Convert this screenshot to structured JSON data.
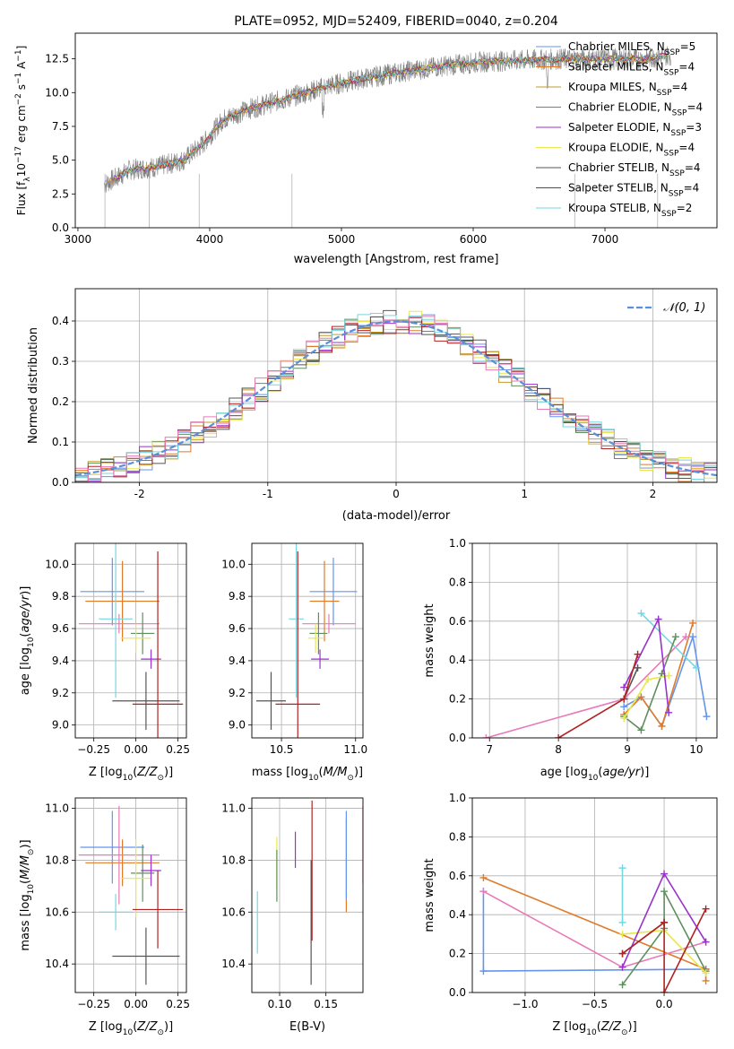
{
  "colors": {
    "Chabrier MILES": "#6495ed",
    "Salpeter MILES": "#e07b2a",
    "Kroupa MILES": "#c49a2e",
    "Chabrier ELODIE": "#5f8f5f",
    "Salpeter ELODIE": "#9932cc",
    "Kroupa ELODIE": "#e8e84a",
    "Chabrier STELIB": "#555555",
    "Salpeter STELIB": "#b22222",
    "Kroupa STELIB": "#76d7e0",
    "extra_pink": "#e87ab8",
    "gaussian": "#5b8fd6",
    "grid": "#b0b0b0"
  },
  "chart_data": [
    {
      "id": "spectrum",
      "type": "line",
      "title": "PLATE=0952, MJD=52409, FIBERID=0040, z=0.204",
      "xlabel": "wavelength [Angstrom, rest frame]",
      "ylabel": "Flux [f_λ 10^-17 erg cm^-2 s^-1 A^-1]",
      "xlim": [
        2980,
        7850
      ],
      "ylim": [
        0,
        14.4
      ],
      "xticks": [
        3000,
        4000,
        5000,
        6000,
        7000
      ],
      "yticks": [
        0.0,
        2.5,
        5.0,
        7.5,
        10.0,
        12.5
      ],
      "grid": false,
      "legend_position": "right",
      "series": [
        {
          "name": "Chabrier MILES",
          "nssp": "5"
        },
        {
          "name": "Salpeter MILES",
          "nssp": "4"
        },
        {
          "name": "Kroupa MILES",
          "nssp": "4"
        },
        {
          "name": "Chabrier ELODIE",
          "nssp": "4"
        },
        {
          "name": "Salpeter ELODIE",
          "nssp": "3"
        },
        {
          "name": "Kroupa ELODIE",
          "nssp": "4"
        },
        {
          "name": "Chabrier STELIB",
          "nssp": "4"
        },
        {
          "name": "Salpeter STELIB",
          "nssp": "4"
        },
        {
          "name": "Kroupa STELIB",
          "nssp": "2"
        }
      ],
      "continuum": {
        "x": [
          3200,
          3400,
          3600,
          3800,
          3950,
          4100,
          4300,
          4600,
          4900,
          5200,
          5500,
          5800,
          6100,
          6400,
          6700,
          7000,
          7300,
          7500
        ],
        "y": [
          3.2,
          4.3,
          4.5,
          5.0,
          6.2,
          8.0,
          8.8,
          9.6,
          10.5,
          11.1,
          11.6,
          12.0,
          12.3,
          12.4,
          12.5,
          12.5,
          12.5,
          12.8
        ]
      }
    },
    {
      "id": "residuals",
      "type": "histogram",
      "xlabel": "(data-model)/error",
      "ylabel": "Normed distribution",
      "xlim": [
        -2.5,
        2.5
      ],
      "ylim": [
        0,
        0.48
      ],
      "xticks": [
        -2,
        -1,
        0,
        1,
        2
      ],
      "yticks": [
        0.0,
        0.1,
        0.2,
        0.3,
        0.4
      ],
      "grid": true,
      "legend": "𝒩(0, 1)",
      "legend_position": "top-right",
      "bin_width": 0.1,
      "bins_from": -2.5
    },
    {
      "id": "age-vs-Z",
      "type": "scatter",
      "xlabel": "Z [log10(Z/Z⊙)]",
      "ylabel": "age  [log10(age/yr)]",
      "xlim": [
        -0.36,
        0.3
      ],
      "ylim": [
        8.92,
        10.13
      ],
      "xticks": [
        -0.25,
        0.0,
        0.25
      ],
      "xticklabels": [
        "−0.25",
        "0.00",
        "0.25"
      ],
      "yticks": [
        9.0,
        9.2,
        9.4,
        9.6,
        9.8,
        10.0
      ],
      "grid": true,
      "points": [
        {
          "model": "Chabrier MILES",
          "x": -0.14,
          "xerr": 0.19,
          "y": 9.83,
          "yerr": 0.21
        },
        {
          "model": "Salpeter MILES",
          "x": -0.08,
          "xerr": 0.22,
          "y": 9.77,
          "yerr": 0.25
        },
        {
          "model": "extra_pink",
          "x": -0.1,
          "xerr": 0.24,
          "y": 9.63,
          "yerr": 0.06
        },
        {
          "model": "Kroupa STELIB",
          "x": -0.12,
          "xerr": 0.1,
          "y": 9.66,
          "yerr": 0.49
        },
        {
          "model": "Chabrier ELODIE",
          "x": 0.04,
          "xerr": 0.07,
          "y": 9.57,
          "yerr": 0.13
        },
        {
          "model": "Kroupa ELODIE",
          "x": 0.0,
          "xerr": 0.09,
          "y": 9.54,
          "yerr": 0.09
        },
        {
          "model": "Salpeter ELODIE",
          "x": 0.09,
          "xerr": 0.06,
          "y": 9.41,
          "yerr": 0.06
        },
        {
          "model": "Chabrier STELIB",
          "x": 0.06,
          "xerr": 0.2,
          "y": 9.15,
          "yerr": 0.18
        },
        {
          "model": "Salpeter STELIB",
          "x": 0.13,
          "xerr": 0.15,
          "y": 9.13,
          "yerr": 0.95
        }
      ]
    },
    {
      "id": "age-vs-mass",
      "type": "scatter",
      "xlabel": "mass [log10(M/M⊙)]",
      "ylabel": "",
      "xlim": [
        10.3,
        11.05
      ],
      "ylim": [
        8.92,
        10.13
      ],
      "xticks": [
        10.5,
        11.0
      ],
      "xticklabels": [
        "10.5",
        "11.0"
      ],
      "yticks": [
        9.0,
        9.2,
        9.4,
        9.6,
        9.8,
        10.0
      ],
      "grid": true,
      "points": [
        {
          "model": "Chabrier MILES",
          "x": 10.85,
          "xerr": 0.16,
          "y": 9.83,
          "yerr": 0.21
        },
        {
          "model": "Salpeter MILES",
          "x": 10.79,
          "xerr": 0.1,
          "y": 9.77,
          "yerr": 0.25
        },
        {
          "model": "extra_pink",
          "x": 10.82,
          "xerr": 0.18,
          "y": 9.63,
          "yerr": 0.06
        },
        {
          "model": "Kroupa STELIB",
          "x": 10.6,
          "xerr": 0.05,
          "y": 9.66,
          "yerr": 0.49
        },
        {
          "model": "Chabrier ELODIE",
          "x": 10.75,
          "xerr": 0.06,
          "y": 9.57,
          "yerr": 0.13
        },
        {
          "model": "Kroupa ELODIE",
          "x": 10.73,
          "xerr": 0.05,
          "y": 9.54,
          "yerr": 0.09
        },
        {
          "model": "Salpeter ELODIE",
          "x": 10.76,
          "xerr": 0.06,
          "y": 9.41,
          "yerr": 0.06
        },
        {
          "model": "Chabrier STELIB",
          "x": 10.43,
          "xerr": 0.1,
          "y": 9.15,
          "yerr": 0.18
        },
        {
          "model": "Salpeter STELIB",
          "x": 10.61,
          "xerr": 0.15,
          "y": 9.13,
          "yerr": 0.95
        }
      ]
    },
    {
      "id": "weight-vs-age",
      "type": "line",
      "xlabel": "age  [log10(age/yr)]",
      "ylabel": "mass weight",
      "xlim": [
        6.75,
        10.3
      ],
      "ylim": [
        0,
        1
      ],
      "xticks": [
        7,
        8,
        9,
        10
      ],
      "xticklabels": [
        "7",
        "8",
        "9",
        "10"
      ],
      "yticks": [
        0.0,
        0.2,
        0.4,
        0.6,
        0.8,
        1.0
      ],
      "grid": true,
      "series": [
        {
          "model": "Chabrier MILES",
          "x": [
            8.95,
            9.2,
            9.5,
            9.95,
            10.15
          ],
          "y": [
            0.16,
            0.21,
            0.06,
            0.52,
            0.11
          ]
        },
        {
          "model": "Salpeter MILES",
          "x": [
            8.95,
            9.2,
            9.5,
            9.95
          ],
          "y": [
            0.12,
            0.21,
            0.06,
            0.59
          ]
        },
        {
          "model": "extra_pink",
          "x": [
            6.95,
            8.95,
            9.85
          ],
          "y": [
            0.0,
            0.2,
            0.52
          ]
        },
        {
          "model": "Kroupa STELIB",
          "x": [
            9.2,
            10.0
          ],
          "y": [
            0.64,
            0.36
          ]
        },
        {
          "model": "Chabrier ELODIE",
          "x": [
            8.95,
            9.2,
            9.5,
            9.7
          ],
          "y": [
            0.11,
            0.04,
            0.33,
            0.52
          ]
        },
        {
          "model": "Kroupa ELODIE",
          "x": [
            8.95,
            9.3,
            9.6
          ],
          "y": [
            0.1,
            0.3,
            0.32
          ]
        },
        {
          "model": "Salpeter ELODIE",
          "x": [
            8.95,
            9.45,
            9.6
          ],
          "y": [
            0.26,
            0.61,
            0.13
          ]
        },
        {
          "model": "Chabrier STELIB",
          "x": [
            8.95,
            9.15
          ],
          "y": [
            0.2,
            0.36
          ]
        },
        {
          "model": "Salpeter STELIB",
          "x": [
            8.0,
            8.95,
            9.15
          ],
          "y": [
            0.0,
            0.2,
            0.43
          ]
        }
      ]
    },
    {
      "id": "mass-vs-Z",
      "type": "scatter",
      "xlabel": "Z [log10(Z/Z⊙)]",
      "ylabel": "mass [log10(M/M⊙)]",
      "xlim": [
        -0.36,
        0.3
      ],
      "ylim": [
        10.29,
        11.04
      ],
      "xticks": [
        -0.25,
        0.0,
        0.25
      ],
      "xticklabels": [
        "−0.25",
        "0.00",
        "0.25"
      ],
      "yticks": [
        10.4,
        10.6,
        10.8,
        11.0
      ],
      "grid": true,
      "points": [
        {
          "model": "Chabrier MILES",
          "x": -0.14,
          "xerr": 0.19,
          "y": 10.85,
          "yerr": 0.14
        },
        {
          "model": "Salpeter MILES",
          "x": -0.08,
          "xerr": 0.22,
          "y": 10.79,
          "yerr": 0.09
        },
        {
          "model": "extra_pink",
          "x": -0.1,
          "xerr": 0.24,
          "y": 10.82,
          "yerr": 0.19
        },
        {
          "model": "Kroupa STELIB",
          "x": -0.12,
          "xerr": 0.1,
          "y": 10.6,
          "yerr": 0.07
        },
        {
          "model": "Chabrier ELODIE",
          "x": 0.04,
          "xerr": 0.07,
          "y": 10.75,
          "yerr": 0.11
        },
        {
          "model": "Kroupa ELODIE",
          "x": 0.0,
          "xerr": 0.09,
          "y": 10.73,
          "yerr": 0.15
        },
        {
          "model": "Salpeter ELODIE",
          "x": 0.09,
          "xerr": 0.06,
          "y": 10.76,
          "yerr": 0.06
        },
        {
          "model": "Chabrier STELIB",
          "x": 0.06,
          "xerr": 0.2,
          "y": 10.43,
          "yerr": 0.11
        },
        {
          "model": "Salpeter STELIB",
          "x": 0.13,
          "xerr": 0.15,
          "y": 10.61,
          "yerr": 0.15
        }
      ]
    },
    {
      "id": "mass-vs-EBV",
      "type": "scatter",
      "xlabel": "E(B-V)",
      "ylabel": "",
      "xlim": [
        0.07,
        0.19
      ],
      "ylim": [
        10.29,
        11.04
      ],
      "xticks": [
        0.1,
        0.15
      ],
      "xticklabels": [
        "0.10",
        "0.15"
      ],
      "yticks": [
        10.4,
        10.6,
        10.8,
        11.0
      ],
      "grid": true,
      "points": [
        {
          "model": "Kroupa STELIB",
          "x": 0.076,
          "y": 10.56,
          "yerr": 0.12
        },
        {
          "model": "Kroupa ELODIE",
          "x": 0.097,
          "y": 10.79,
          "yerr": 0.1
        },
        {
          "model": "Chabrier ELODIE",
          "x": 0.097,
          "y": 10.74,
          "yerr": 0.1
        },
        {
          "model": "Salpeter ELODIE",
          "x": 0.117,
          "y": 10.84,
          "yerr": 0.07
        },
        {
          "model": "Chabrier STELIB",
          "x": 0.134,
          "y": 10.56,
          "yerr": 0.24
        },
        {
          "model": "Salpeter STELIB",
          "x": 0.135,
          "y": 10.76,
          "yerr": 0.27
        },
        {
          "model": "Salpeter MILES",
          "x": 0.172,
          "y": 10.78,
          "yerr": 0.18
        },
        {
          "model": "Chabrier MILES",
          "x": 0.172,
          "y": 10.82,
          "yerr": 0.17
        },
        {
          "model": "extra_pink",
          "x": 0.19,
          "y": 10.86,
          "yerr": 0.15
        }
      ]
    },
    {
      "id": "weight-vs-Z",
      "type": "line",
      "xlabel": "Z [log10(Z/Z⊙)]",
      "ylabel": "mass weight",
      "xlim": [
        -1.38,
        0.38
      ],
      "ylim": [
        0,
        1
      ],
      "xticks": [
        -1.0,
        -0.5,
        0.0
      ],
      "xticklabels": [
        "−1.0",
        "−0.5",
        "0.0"
      ],
      "yticks": [
        0.0,
        0.2,
        0.4,
        0.6,
        0.8,
        1.0
      ],
      "grid": true,
      "series": [
        {
          "model": "Chabrier MILES",
          "x": [
            -1.3,
            -1.3,
            0.3,
            0.3
          ],
          "y": [
            0.52,
            0.11,
            0.12,
            0.12
          ]
        },
        {
          "model": "Salpeter MILES",
          "x": [
            -1.3,
            0.3,
            0.3
          ],
          "y": [
            0.59,
            0.12,
            0.06
          ]
        },
        {
          "model": "extra_pink",
          "x": [
            -1.3,
            -0.3,
            0.3
          ],
          "y": [
            0.52,
            0.13,
            0.26
          ]
        },
        {
          "model": "Kroupa STELIB",
          "x": [
            -0.3,
            -0.3
          ],
          "y": [
            0.64,
            0.36
          ]
        },
        {
          "model": "Chabrier ELODIE",
          "x": [
            -0.3,
            0.0,
            0.0,
            0.3
          ],
          "y": [
            0.04,
            0.33,
            0.52,
            0.11
          ]
        },
        {
          "model": "Kroupa ELODIE",
          "x": [
            -0.3,
            0.0,
            0.3
          ],
          "y": [
            0.3,
            0.32,
            0.1
          ]
        },
        {
          "model": "Salpeter ELODIE",
          "x": [
            -0.3,
            0.0,
            0.3
          ],
          "y": [
            0.13,
            0.61,
            0.26
          ]
        },
        {
          "model": "Chabrier STELIB",
          "x": [
            -0.3,
            0.0
          ],
          "y": [
            0.2,
            0.36
          ]
        },
        {
          "model": "Salpeter STELIB",
          "x": [
            -0.3,
            0.0,
            0.0,
            0.3
          ],
          "y": [
            0.2,
            0.36,
            0.0,
            0.43
          ]
        }
      ]
    }
  ]
}
